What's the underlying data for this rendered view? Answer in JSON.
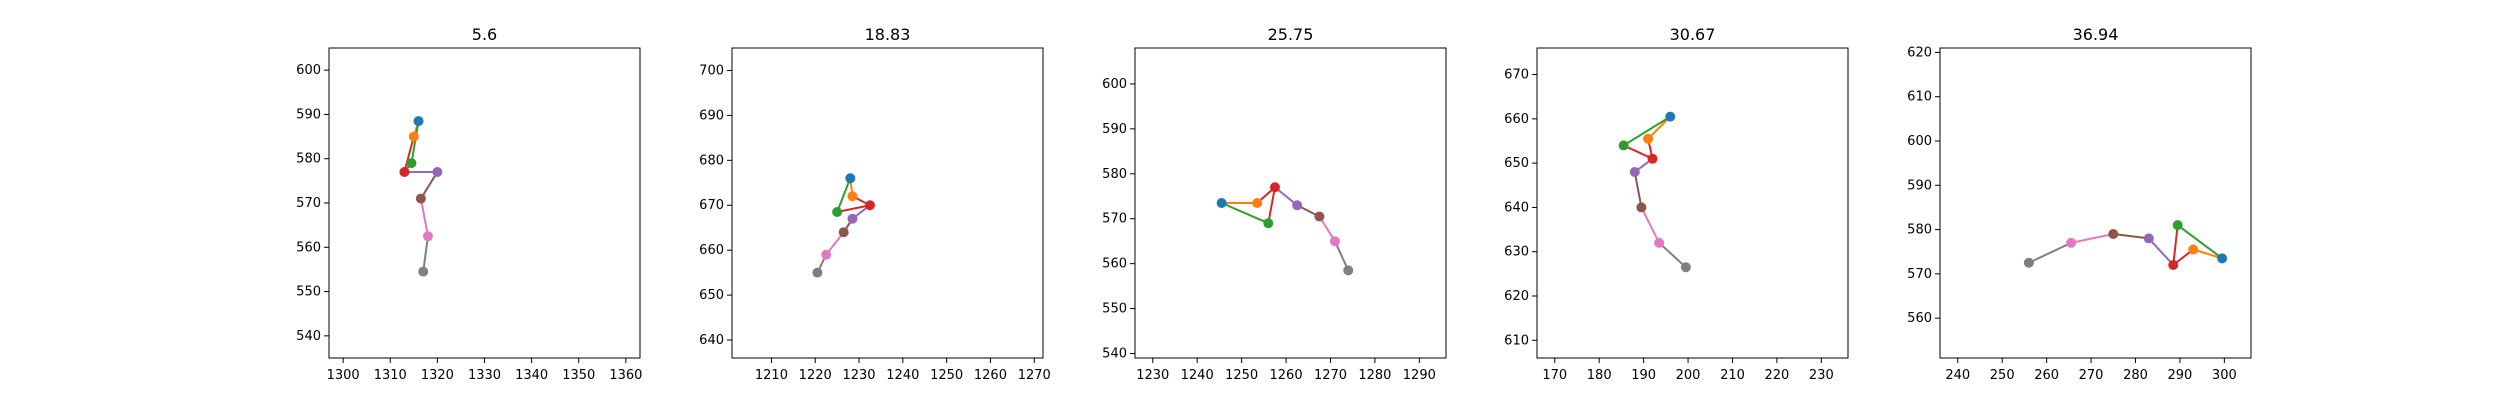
{
  "chart_data": [
    {
      "type": "line",
      "title": "5.6",
      "xlim": [
        1297,
        1363
      ],
      "ylim": [
        535,
        605
      ],
      "xticks": [
        1300,
        1310,
        1320,
        1330,
        1340,
        1350,
        1360
      ],
      "yticks": [
        540,
        550,
        560,
        570,
        580,
        590,
        600
      ],
      "grid": false,
      "points": [
        [
          1316.0,
          588.5
        ],
        [
          1315.0,
          585.0
        ],
        [
          1314.5,
          579.0
        ],
        [
          1313.0,
          577.0
        ],
        [
          1320.0,
          577.0
        ],
        [
          1316.5,
          571.0
        ],
        [
          1318.0,
          562.5
        ],
        [
          1317.0,
          554.5
        ]
      ]
    },
    {
      "type": "line",
      "title": "18.83",
      "xlim": [
        1201,
        1272
      ],
      "ylim": [
        636,
        705
      ],
      "xticks": [
        1210,
        1220,
        1230,
        1240,
        1250,
        1260,
        1270
      ],
      "yticks": [
        640,
        650,
        660,
        670,
        680,
        690,
        700
      ],
      "grid": false,
      "points": [
        [
          1228.0,
          676.0
        ],
        [
          1228.5,
          672.0
        ],
        [
          1225.0,
          668.5
        ],
        [
          1232.5,
          670.0
        ],
        [
          1228.5,
          667.0
        ],
        [
          1226.5,
          664.0
        ],
        [
          1222.5,
          659.0
        ],
        [
          1220.5,
          655.0
        ]
      ]
    },
    {
      "type": "line",
      "title": "25.75",
      "xlim": [
        1226,
        1296
      ],
      "ylim": [
        539,
        608
      ],
      "xticks": [
        1230,
        1240,
        1250,
        1260,
        1270,
        1280,
        1290
      ],
      "yticks": [
        540,
        550,
        560,
        570,
        580,
        590,
        600
      ],
      "grid": false,
      "points": [
        [
          1245.5,
          573.5
        ],
        [
          1253.5,
          573.5
        ],
        [
          1256.0,
          569.0
        ],
        [
          1257.5,
          577.0
        ],
        [
          1262.5,
          573.0
        ],
        [
          1267.5,
          570.5
        ],
        [
          1271.0,
          565.0
        ],
        [
          1274.0,
          558.5
        ]
      ]
    },
    {
      "type": "line",
      "title": "30.67",
      "xlim": [
        166,
        236
      ],
      "ylim": [
        606,
        676
      ],
      "xticks": [
        170,
        180,
        190,
        200,
        210,
        220,
        230
      ],
      "yticks": [
        610,
        620,
        630,
        640,
        650,
        660,
        670
      ],
      "grid": false,
      "points": [
        [
          196.0,
          660.5
        ],
        [
          191.0,
          655.5
        ],
        [
          185.5,
          654.0
        ],
        [
          192.0,
          651.0
        ],
        [
          188.0,
          648.0
        ],
        [
          189.5,
          640.0
        ],
        [
          193.5,
          632.0
        ],
        [
          199.5,
          626.5
        ]
      ]
    },
    {
      "type": "line",
      "title": "36.94",
      "xlim": [
        236,
        306
      ],
      "ylim": [
        551,
        621
      ],
      "xticks": [
        240,
        250,
        260,
        270,
        280,
        290,
        300
      ],
      "yticks": [
        560,
        570,
        580,
        590,
        600,
        610,
        620
      ],
      "grid": false,
      "points": [
        [
          299.5,
          573.5
        ],
        [
          293.0,
          575.5
        ],
        [
          289.5,
          581.0
        ],
        [
          288.5,
          572.0
        ],
        [
          283.0,
          578.0
        ],
        [
          275.0,
          579.0
        ],
        [
          265.5,
          577.0
        ],
        [
          256.0,
          572.5
        ]
      ]
    }
  ],
  "colors": {
    "c0": "#1f77b4",
    "c1": "#ff7f0e",
    "c2": "#2ca02c",
    "c3": "#d62728",
    "c4": "#9467bd",
    "c5": "#8c564b",
    "c6": "#e377c2",
    "c7": "#7f7f7f"
  }
}
